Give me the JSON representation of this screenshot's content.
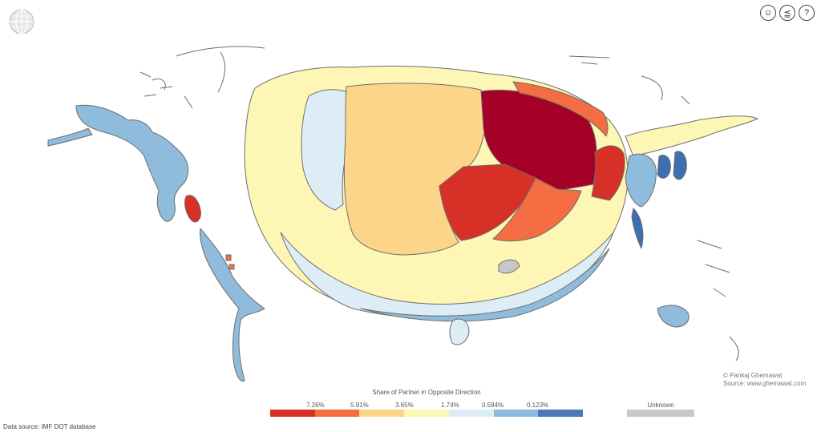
{
  "toolbar": {
    "globe_icon": "globe-icon",
    "buttons": [
      {
        "name": "user-switch-icon",
        "glyph": "☺"
      },
      {
        "name": "share-icon",
        "glyph": "⪷"
      },
      {
        "name": "help-icon",
        "glyph": "?"
      }
    ]
  },
  "credit": {
    "line1": "© Pankaj Ghemawat",
    "line2": "Source: www.ghemawat.com"
  },
  "legend": {
    "title": "Share of Partner in Opposite Direction",
    "labels": [
      "7.26%",
      "5.91%",
      "3.65%",
      "1.74%",
      "0.594%",
      "0.123%"
    ],
    "colors": [
      "#d73027",
      "#f46d43",
      "#fdd58a",
      "#fef6b5",
      "#dcedf6",
      "#8fbbdc",
      "#4a7ab8"
    ],
    "unknown_label": "Unknown",
    "unknown_color": "#c8c8c8"
  },
  "source": "Data source: IMF DOT database",
  "map_colors": {
    "darkred": "#a50026",
    "red": "#d73027",
    "orange": "#f46d43",
    "tan": "#fdd58a",
    "yellow": "#fef6b5",
    "lightblue": "#dcedf6",
    "blue": "#8fbbdc",
    "darkblue": "#3e6fb0",
    "gray": "#c8c8c8",
    "border": "#777777"
  }
}
